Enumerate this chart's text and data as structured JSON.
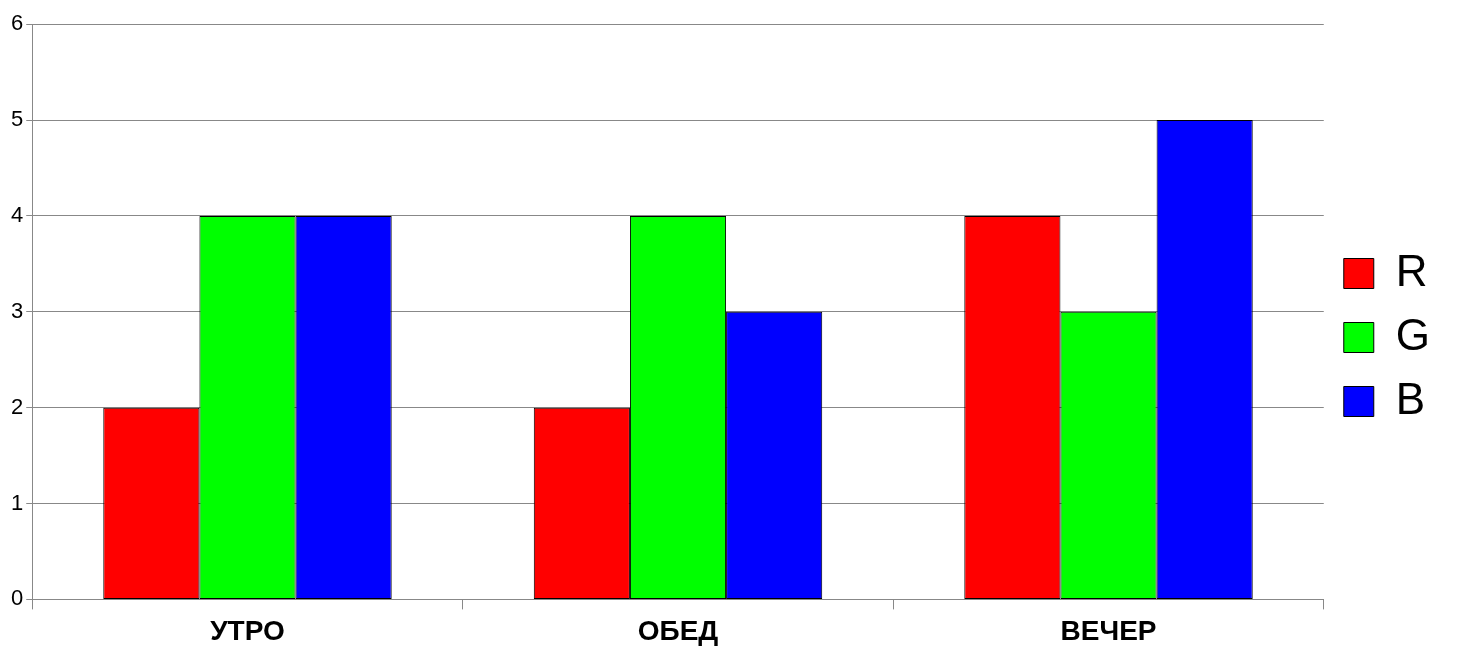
{
  "chart_data": {
    "type": "bar",
    "categories": [
      "УТРО",
      "ОБЕД",
      "ВЕЧЕР"
    ],
    "series": [
      {
        "name": "R",
        "color": "#ff0000",
        "values": [
          2,
          2,
          4
        ]
      },
      {
        "name": "G",
        "color": "#00ff00",
        "values": [
          4,
          4,
          3
        ]
      },
      {
        "name": "B",
        "color": "#0000ff",
        "values": [
          4,
          3,
          5
        ]
      }
    ],
    "ylim": [
      0,
      6
    ],
    "yticks": [
      0,
      1,
      2,
      3,
      4,
      5,
      6
    ],
    "grid": "y",
    "legend": "right"
  }
}
